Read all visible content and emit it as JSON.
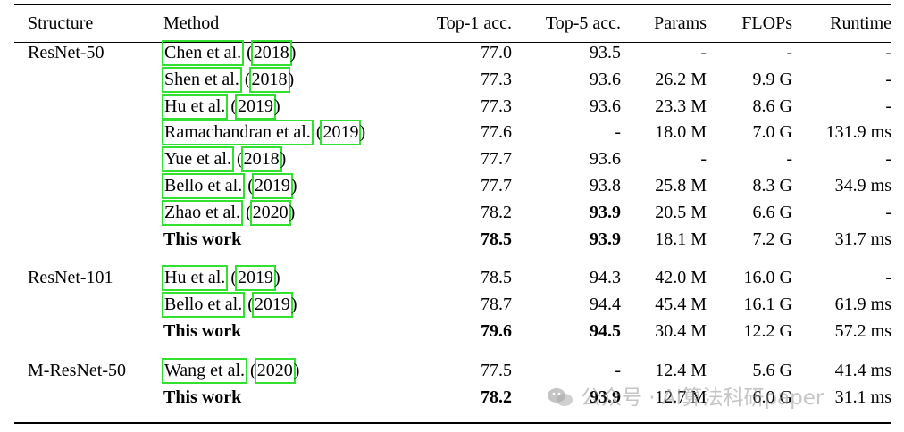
{
  "table": {
    "headers": [
      "Structure",
      "Method",
      "Top-1 acc.",
      "Top-5 acc.",
      "Params",
      "FLOPs",
      "Runtime"
    ],
    "groups": [
      {
        "structure": "ResNet-50",
        "rows": [
          {
            "author": "Chen et al.",
            "year": "2018",
            "top1": "77.0",
            "top5": "93.5",
            "params": "-",
            "flops": "-",
            "runtime": "-"
          },
          {
            "author": "Shen et al.",
            "year": "2018",
            "top1": "77.3",
            "top5": "93.6",
            "params": "26.2 M",
            "flops": "9.9 G",
            "runtime": "-"
          },
          {
            "author": "Hu et al.",
            "year": "2019",
            "top1": "77.3",
            "top5": "93.6",
            "params": "23.3 M",
            "flops": "8.6 G",
            "runtime": "-"
          },
          {
            "author": "Ramachandran et al.",
            "year": "2019",
            "top1": "77.6",
            "top5": "-",
            "params": "18.0 M",
            "flops": "7.0 G",
            "runtime": "131.9 ms"
          },
          {
            "author": "Yue et al.",
            "year": "2018",
            "top1": "77.7",
            "top5": "93.6",
            "params": "-",
            "flops": "-",
            "runtime": "-"
          },
          {
            "author": "Bello et al.",
            "year": "2019",
            "top1": "77.7",
            "top5": "93.8",
            "params": "25.8 M",
            "flops": "8.3 G",
            "runtime": "34.9 ms"
          },
          {
            "author": "Zhao et al.",
            "year": "2020",
            "top1": "78.2",
            "top5": "93.9",
            "params": "20.5 M",
            "flops": "6.6 G",
            "runtime": "-"
          },
          {
            "method": "This work",
            "top1": "78.5",
            "top5": "93.9",
            "params": "18.1 M",
            "flops": "7.2 G",
            "runtime": "31.7 ms"
          }
        ]
      },
      {
        "structure": "ResNet-101",
        "rows": [
          {
            "author": "Hu et al.",
            "year": "2019",
            "top1": "78.5",
            "top5": "94.3",
            "params": "42.0 M",
            "flops": "16.0 G",
            "runtime": "-"
          },
          {
            "author": "Bello et al.",
            "year": "2019",
            "top1": "78.7",
            "top5": "94.4",
            "params": "45.4 M",
            "flops": "16.1 G",
            "runtime": "61.9 ms"
          },
          {
            "method": "This work",
            "top1": "79.6",
            "top5": "94.5",
            "params": "30.4 M",
            "flops": "12.2 G",
            "runtime": "57.2 ms"
          }
        ]
      },
      {
        "structure": "M-ResNet-50",
        "rows": [
          {
            "author": "Wang et al.",
            "year": "2020",
            "top1": "77.5",
            "top5": "-",
            "params": "12.4 M",
            "flops": "5.6 G",
            "runtime": "41.4 ms"
          },
          {
            "method": "This work",
            "top1": "78.2",
            "top5": "93.9",
            "params": "12.7 M",
            "flops": "6.0 G",
            "runtime": "31.1 ms"
          }
        ]
      }
    ]
  },
  "citation_highlight_color": "#32e032",
  "watermark": {
    "icon": "wechat-icon",
    "text": "公众号 · AI算法科研paper"
  }
}
